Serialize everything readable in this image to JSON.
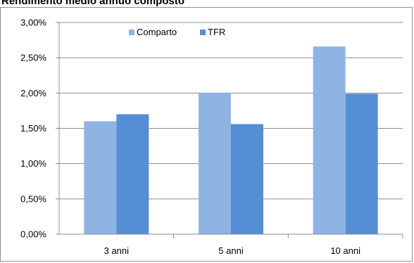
{
  "chart_data": {
    "type": "bar",
    "title": "Rendimento medio annuo composto",
    "categories": [
      "3 anni",
      "5 anni",
      "10 anni"
    ],
    "series": [
      {
        "name": "Comparto",
        "values": [
          1.6,
          2.0,
          2.66
        ],
        "color": "#8EB4E3"
      },
      {
        "name": "TFR",
        "values": [
          1.7,
          1.56,
          1.99
        ],
        "color": "#558ED5"
      }
    ],
    "ylim": [
      0,
      3
    ],
    "yticks": [
      0,
      0.5,
      1.0,
      1.5,
      2.0,
      2.5,
      3.0
    ],
    "ytick_labels": [
      "0,00%",
      "0,50%",
      "1,00%",
      "1,50%",
      "2,00%",
      "2,50%",
      "3,00%"
    ],
    "grid": true,
    "legend_position": "top-center"
  }
}
